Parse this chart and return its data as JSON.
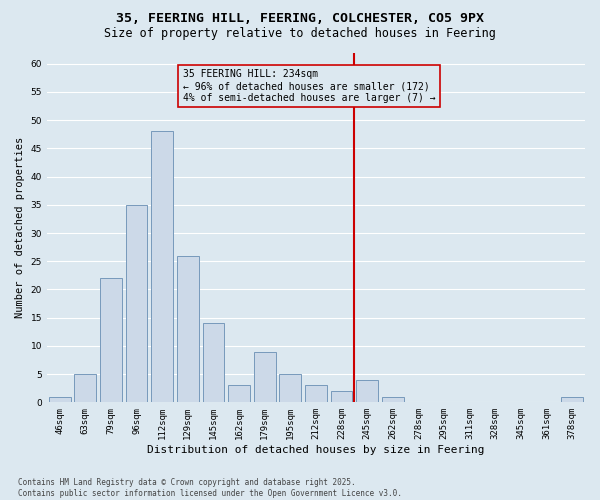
{
  "title1": "35, FEERING HILL, FEERING, COLCHESTER, CO5 9PX",
  "title2": "Size of property relative to detached houses in Feering",
  "xlabel": "Distribution of detached houses by size in Feering",
  "ylabel": "Number of detached properties",
  "categories": [
    "46sqm",
    "63sqm",
    "79sqm",
    "96sqm",
    "112sqm",
    "129sqm",
    "145sqm",
    "162sqm",
    "179sqm",
    "195sqm",
    "212sqm",
    "228sqm",
    "245sqm",
    "262sqm",
    "278sqm",
    "295sqm",
    "311sqm",
    "328sqm",
    "345sqm",
    "361sqm",
    "378sqm"
  ],
  "values": [
    1,
    5,
    22,
    35,
    48,
    26,
    14,
    3,
    9,
    5,
    3,
    2,
    4,
    1,
    0,
    0,
    0,
    0,
    0,
    0,
    1
  ],
  "bar_color": "#ccd9e8",
  "bar_edge_color": "#7799bb",
  "bg_color": "#dce8f0",
  "grid_color": "#ffffff",
  "vline_x": 11.5,
  "vline_color": "#cc0000",
  "annotation_text": "35 FEERING HILL: 234sqm\n← 96% of detached houses are smaller (172)\n4% of semi-detached houses are larger (7) →",
  "annotation_box_color": "#cc0000",
  "ylim": [
    0,
    62
  ],
  "yticks": [
    0,
    5,
    10,
    15,
    20,
    25,
    30,
    35,
    40,
    45,
    50,
    55,
    60
  ],
  "footer": "Contains HM Land Registry data © Crown copyright and database right 2025.\nContains public sector information licensed under the Open Government Licence v3.0.",
  "title1_fontsize": 9.5,
  "title2_fontsize": 8.5,
  "xlabel_fontsize": 8,
  "ylabel_fontsize": 7.5,
  "tick_fontsize": 6.5,
  "annotation_fontsize": 7,
  "footer_fontsize": 5.5
}
